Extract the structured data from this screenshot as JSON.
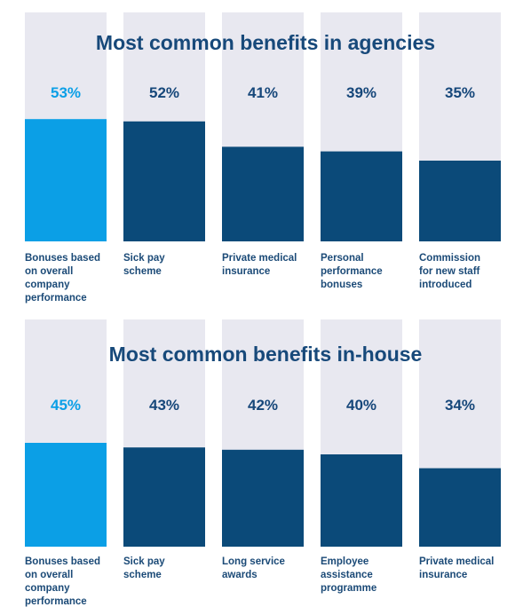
{
  "colors": {
    "track": "#e8e8f0",
    "highlight": "#0b9fe6",
    "bar": "#0b4a79",
    "highlight_text": "#0b9fe6",
    "value_text": "#16477a",
    "title_text": "#17497a",
    "label_text": "#1b4a77"
  },
  "chart_data": [
    {
      "type": "bar",
      "title": "Most common benefits in agencies",
      "categories": [
        "Bonuses based on overall company performance",
        "Sick pay scheme",
        "Private medical insurance",
        "Personal performance bonuses",
        "Commission for new staff introduced"
      ],
      "category_lines": [
        [
          "Bonuses based",
          "on overall",
          "company",
          "performance"
        ],
        [
          "Sick pay",
          "scheme"
        ],
        [
          "Private medical",
          "insurance"
        ],
        [
          "Personal",
          "performance",
          "bonuses"
        ],
        [
          "Commission",
          "for new staff",
          "introduced"
        ]
      ],
      "values": [
        53,
        52,
        41,
        39,
        35
      ],
      "value_labels": [
        "53%",
        "52%",
        "41%",
        "39%",
        "35%"
      ],
      "highlight_index": 0,
      "ylim": [
        0,
        100
      ]
    },
    {
      "type": "bar",
      "title": "Most common benefits in-house",
      "categories": [
        "Bonuses based on overall company performance",
        "Sick pay scheme",
        "Long service awards",
        "Employee assistance programme",
        "Private medical insurance"
      ],
      "category_lines": [
        [
          "Bonuses based",
          "on overall",
          "company",
          "performance"
        ],
        [
          "Sick pay",
          "scheme"
        ],
        [
          "Long service",
          "awards"
        ],
        [
          "Employee",
          "assistance",
          "programme"
        ],
        [
          "Private medical",
          "insurance"
        ]
      ],
      "values": [
        45,
        43,
        42,
        40,
        34
      ],
      "value_labels": [
        "45%",
        "43%",
        "42%",
        "40%",
        "34%"
      ],
      "highlight_index": 0,
      "ylim": [
        0,
        100
      ]
    }
  ]
}
